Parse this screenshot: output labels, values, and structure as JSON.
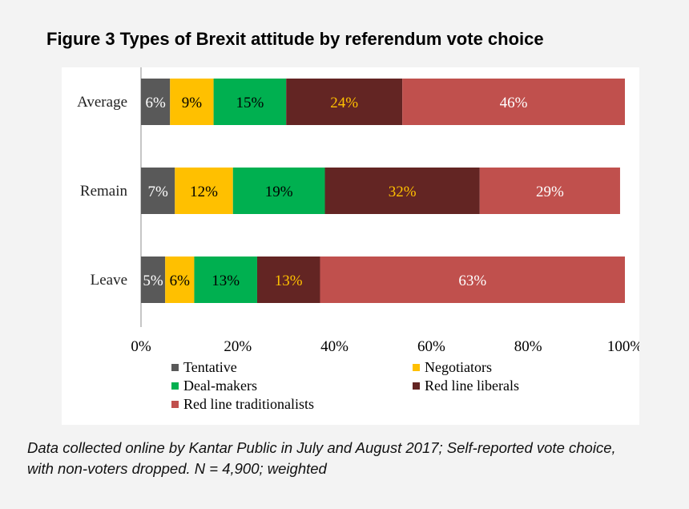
{
  "chart_data": {
    "type": "bar",
    "orientation": "horizontal",
    "stacked": true,
    "title": "Figure 3 Types of Brexit attitude by referendum vote choice",
    "categories": [
      "Average",
      "Remain",
      "Leave"
    ],
    "series": [
      {
        "name": "Tentative",
        "values": [
          6,
          7,
          5
        ],
        "color": "#595959",
        "label_color": "#ffffff"
      },
      {
        "name": "Negotiators",
        "values": [
          9,
          12,
          6
        ],
        "color": "#ffc000",
        "label_color": "#000000"
      },
      {
        "name": "Deal-makers",
        "values": [
          15,
          19,
          13
        ],
        "color": "#00b050",
        "label_color": "#000000"
      },
      {
        "name": "Red line liberals",
        "values": [
          24,
          32,
          13
        ],
        "color": "#632523",
        "label_color": "#ffc000"
      },
      {
        "name": "Red line traditionalists",
        "values": [
          46,
          29,
          63
        ],
        "color": "#c0504d",
        "label_color": "#ffffff"
      }
    ],
    "value_suffix": "%",
    "xlim": [
      0,
      100
    ],
    "xticks": [
      "0%",
      "20%",
      "40%",
      "60%",
      "80%",
      "100%"
    ],
    "legend_position": "bottom",
    "grid": false
  },
  "footnote": {
    "line1": "Data collected online by Kantar Public in July and August 2017; Self-reported vote choice,",
    "line2": "with non-voters dropped. N = 4,900; weighted"
  }
}
